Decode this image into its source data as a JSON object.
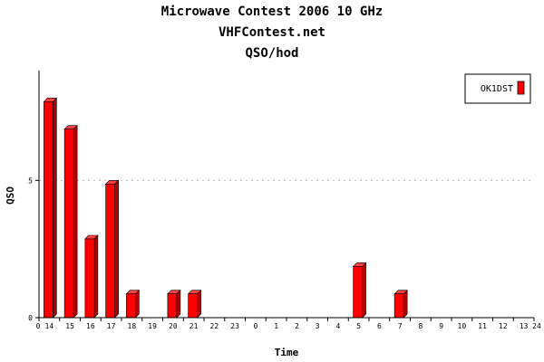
{
  "chart_data": {
    "type": "bar",
    "title_lines": [
      "Microwave Contest 2006 10 GHz",
      "VHFContest.net",
      "QSO/hod"
    ],
    "xlabel": "Time",
    "ylabel": "QSO",
    "categories": [
      "14",
      "15",
      "16",
      "17",
      "18",
      "19",
      "20",
      "21",
      "22",
      "23",
      "0",
      "1",
      "2",
      "3",
      "4",
      "5",
      "6",
      "7",
      "8",
      "9",
      "10",
      "11",
      "12",
      "13"
    ],
    "series": [
      {
        "name": "OK1DST",
        "color": "#ff0000",
        "values": [
          8,
          7,
          3,
          5,
          1,
          0,
          1,
          1,
          0,
          0,
          0,
          0,
          0,
          0,
          0,
          2,
          0,
          1,
          0,
          0,
          0,
          0,
          0,
          0
        ]
      }
    ],
    "ylim": [
      0,
      9
    ],
    "yticks": [
      0,
      5
    ],
    "x_axis_end_labels": [
      "0",
      "24"
    ],
    "grid": "horizontal dotted at y=5",
    "legend_position": "top-right"
  }
}
